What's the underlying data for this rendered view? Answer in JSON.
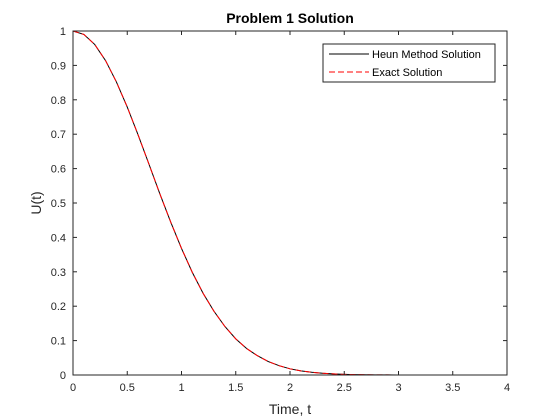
{
  "chart_data": {
    "type": "line",
    "title": "Problem 1 Solution",
    "xlabel": "Time, t",
    "ylabel": "U(t)",
    "xlim": [
      0,
      4
    ],
    "ylim": [
      0,
      1
    ],
    "xticks": [
      0,
      0.5,
      1,
      1.5,
      2,
      2.5,
      3,
      3.5,
      4
    ],
    "xtick_labels": [
      "0",
      "0.5",
      "1",
      "1.5",
      "2",
      "2.5",
      "3",
      "3.5",
      "4"
    ],
    "yticks": [
      0,
      0.1,
      0.2,
      0.3,
      0.4,
      0.5,
      0.6,
      0.7,
      0.8,
      0.9,
      1
    ],
    "ytick_labels": [
      "0",
      "0.1",
      "0.2",
      "0.3",
      "0.4",
      "0.5",
      "0.6",
      "0.7",
      "0.8",
      "0.9",
      "1"
    ],
    "grid": false,
    "legend_position": "top-right",
    "x": [
      0,
      0.1,
      0.2,
      0.3,
      0.4,
      0.5,
      0.6,
      0.7,
      0.8,
      0.9,
      1.0,
      1.1,
      1.2,
      1.3,
      1.4,
      1.5,
      1.6,
      1.7,
      1.8,
      1.9,
      2.0,
      2.1,
      2.2,
      2.3,
      2.4,
      2.5,
      2.6,
      2.7,
      2.8,
      2.9,
      3.0,
      3.1,
      3.2,
      3.3,
      3.4,
      3.5,
      3.6,
      3.7,
      3.8,
      3.9,
      4.0
    ],
    "series": [
      {
        "name": "Heun Method Solution",
        "color": "#000000",
        "dash": "solid",
        "values": [
          1.0,
          0.99,
          0.961,
          0.914,
          0.852,
          0.779,
          0.698,
          0.613,
          0.527,
          0.445,
          0.368,
          0.298,
          0.237,
          0.185,
          0.141,
          0.105,
          0.077,
          0.056,
          0.039,
          0.027,
          0.018,
          0.012,
          0.0079,
          0.0051,
          0.0032,
          0.0019,
          0.0012,
          0.0007,
          0.0004,
          0.0002,
          0.0001,
          0.0001,
          0.0,
          0.0,
          0.0,
          0.0,
          0.0,
          0.0,
          0.0,
          0.0,
          0.0
        ]
      },
      {
        "name": "Exact Solution",
        "color": "#ff0000",
        "dash": "dashed",
        "values": [
          1.0,
          0.99,
          0.961,
          0.914,
          0.852,
          0.779,
          0.698,
          0.613,
          0.527,
          0.445,
          0.368,
          0.298,
          0.237,
          0.185,
          0.141,
          0.105,
          0.077,
          0.056,
          0.039,
          0.027,
          0.018,
          0.012,
          0.0079,
          0.0051,
          0.0032,
          0.0019,
          0.0012,
          0.0007,
          0.0004,
          0.0002,
          0.0001,
          0.0001,
          0.0,
          0.0,
          0.0,
          0.0,
          0.0,
          0.0,
          0.0,
          0.0,
          0.0
        ]
      }
    ]
  }
}
